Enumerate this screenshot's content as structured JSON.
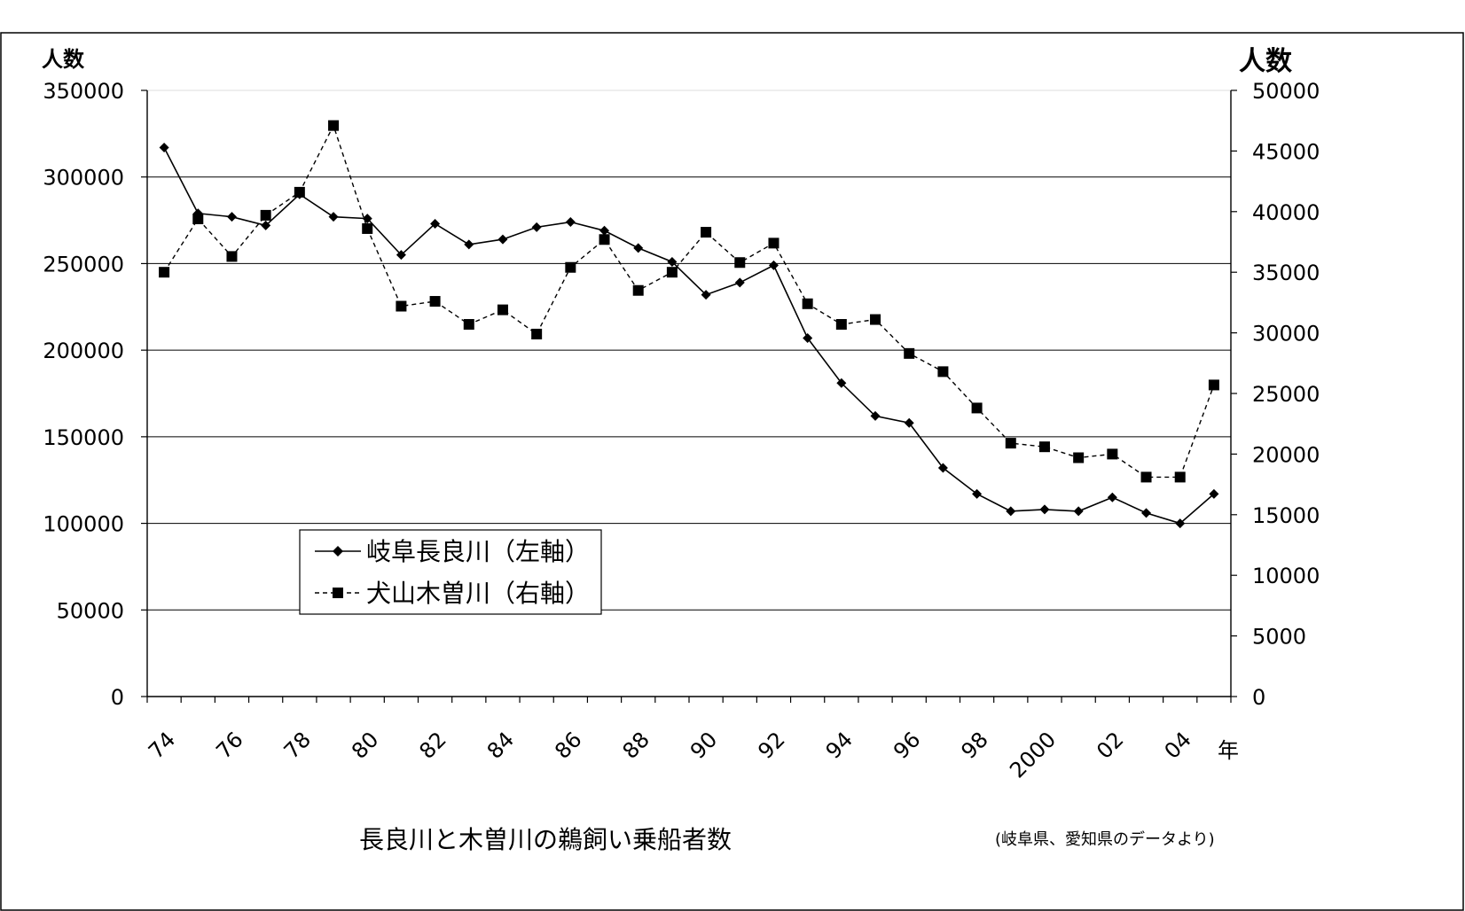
{
  "chart_data": {
    "type": "line",
    "x": [
      "74",
      "75",
      "76",
      "77",
      "78",
      "79",
      "80",
      "81",
      "82",
      "83",
      "84",
      "85",
      "86",
      "87",
      "88",
      "89",
      "90",
      "91",
      "92",
      "93",
      "94",
      "95",
      "96",
      "97",
      "98",
      "99",
      "2000",
      "01",
      "02",
      "03",
      "04",
      "05"
    ],
    "x_tick_labels": [
      "74",
      "76",
      "78",
      "80",
      "82",
      "84",
      "86",
      "88",
      "90",
      "92",
      "94",
      "96",
      "98",
      "2000",
      "02",
      "04"
    ],
    "x_unit": "年",
    "y_left": {
      "label": "人数",
      "lim": [
        0,
        350000
      ],
      "ticks": [
        0,
        50000,
        100000,
        150000,
        200000,
        250000,
        300000,
        350000
      ]
    },
    "y_right": {
      "label": "人数",
      "lim": [
        0,
        50000
      ],
      "ticks": [
        0,
        5000,
        10000,
        15000,
        20000,
        25000,
        30000,
        35000,
        40000,
        45000,
        50000
      ]
    },
    "series": [
      {
        "name": "岐阜長良川（左軸）",
        "axis": "left",
        "style": "solid",
        "marker": "diamond",
        "values": [
          317000,
          279000,
          277000,
          272000,
          290000,
          277000,
          276000,
          255000,
          273000,
          261000,
          264000,
          271000,
          274000,
          269000,
          259000,
          251000,
          232000,
          239000,
          249000,
          207000,
          181000,
          162000,
          158000,
          132000,
          117000,
          107000,
          108000,
          107000,
          115000,
          106000,
          100000,
          117000
        ]
      },
      {
        "name": "犬山木曽川（右軸）",
        "axis": "right",
        "style": "dashed",
        "marker": "square",
        "values": [
          35000,
          39400,
          36300,
          39700,
          41600,
          47100,
          38600,
          32200,
          32600,
          30700,
          31900,
          29900,
          35400,
          37700,
          33500,
          35000,
          38300,
          35800,
          37400,
          32400,
          30700,
          31100,
          28300,
          26800,
          23800,
          20900,
          20600,
          19700,
          20000,
          18100,
          18100,
          25700
        ]
      }
    ],
    "grid": "horizontal",
    "legend_position": "lower-left",
    "caption": "長良川と木曽川の鵜飼い乗船者数",
    "source": "(岐阜県、愛知県のデータより)"
  }
}
